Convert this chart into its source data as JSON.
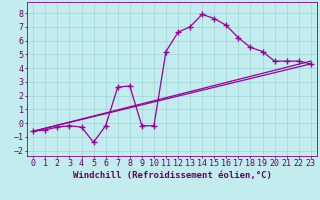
{
  "xlabel": "Windchill (Refroidissement éolien,°C)",
  "xlim": [
    -0.5,
    23.5
  ],
  "ylim": [
    -2.4,
    8.8
  ],
  "xticks": [
    0,
    1,
    2,
    3,
    4,
    5,
    6,
    7,
    8,
    9,
    10,
    11,
    12,
    13,
    14,
    15,
    16,
    17,
    18,
    19,
    20,
    21,
    22,
    23
  ],
  "yticks": [
    -2,
    -1,
    0,
    1,
    2,
    3,
    4,
    5,
    6,
    7,
    8
  ],
  "bg_color": "#c2ecee",
  "grid_color": "#9dd4d8",
  "line_color": "#990099",
  "line1_x": [
    0,
    1,
    2,
    3,
    4,
    5,
    6,
    7,
    8,
    9,
    10,
    11,
    12,
    13,
    14,
    15,
    16,
    17,
    18,
    19,
    20,
    21,
    22,
    23
  ],
  "line1_y": [
    -0.6,
    -0.5,
    -0.3,
    -0.2,
    -0.3,
    -1.4,
    -0.2,
    2.6,
    2.7,
    -0.2,
    -0.2,
    5.2,
    6.6,
    7.0,
    7.9,
    7.6,
    7.1,
    6.2,
    5.5,
    5.2,
    4.5,
    4.5,
    4.5,
    4.3
  ],
  "line2_x": [
    0,
    23
  ],
  "line2_y": [
    -0.6,
    4.5
  ],
  "line3_x": [
    0,
    23
  ],
  "line3_y": [
    -0.6,
    4.3
  ],
  "font_size": 6.5,
  "tick_font_size": 6.0
}
